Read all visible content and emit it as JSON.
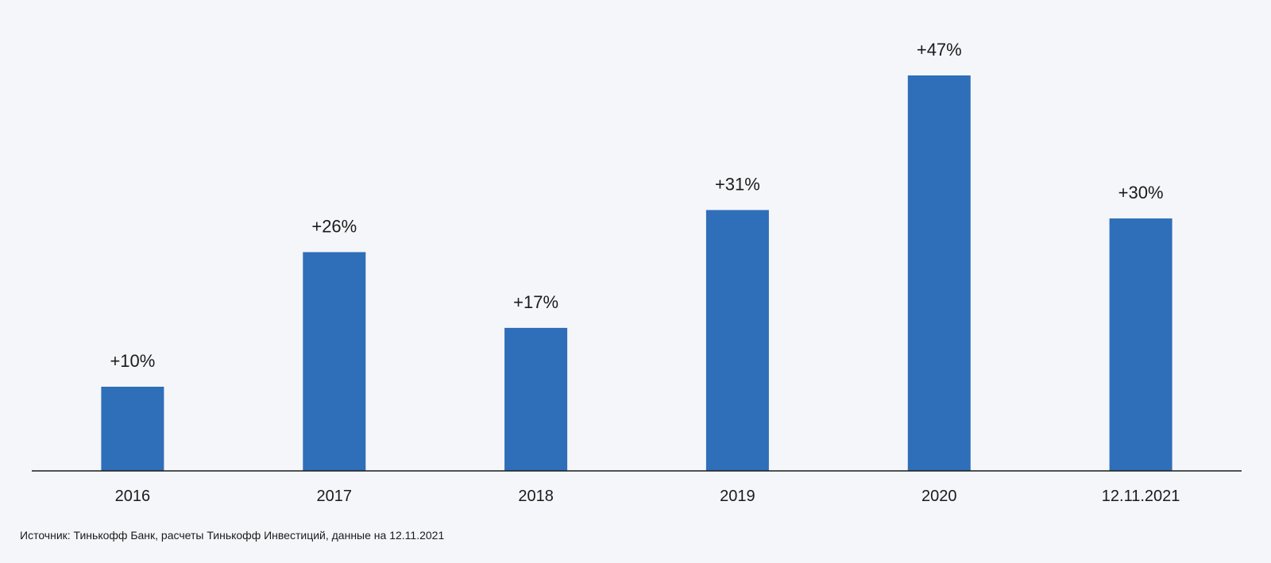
{
  "chart_data": {
    "type": "bar",
    "categories": [
      "2016",
      "2017",
      "2018",
      "2019",
      "2020",
      "12.11.2021"
    ],
    "values": [
      10,
      26,
      17,
      31,
      47,
      30
    ],
    "data_labels": [
      "+10%",
      "+26%",
      "+17%",
      "+31%",
      "+47%",
      "+30%"
    ],
    "title": "",
    "xlabel": "",
    "ylabel": "",
    "ylim": [
      0,
      47
    ],
    "grid": false,
    "legend": "none",
    "bar_color": "#2f6eb9",
    "axis_color": "#1b1b1b"
  },
  "footer": {
    "source": "Источник: Тинькофф Банк, расчеты Тинькофф Инвестиций, данные на 12.11.2021"
  }
}
